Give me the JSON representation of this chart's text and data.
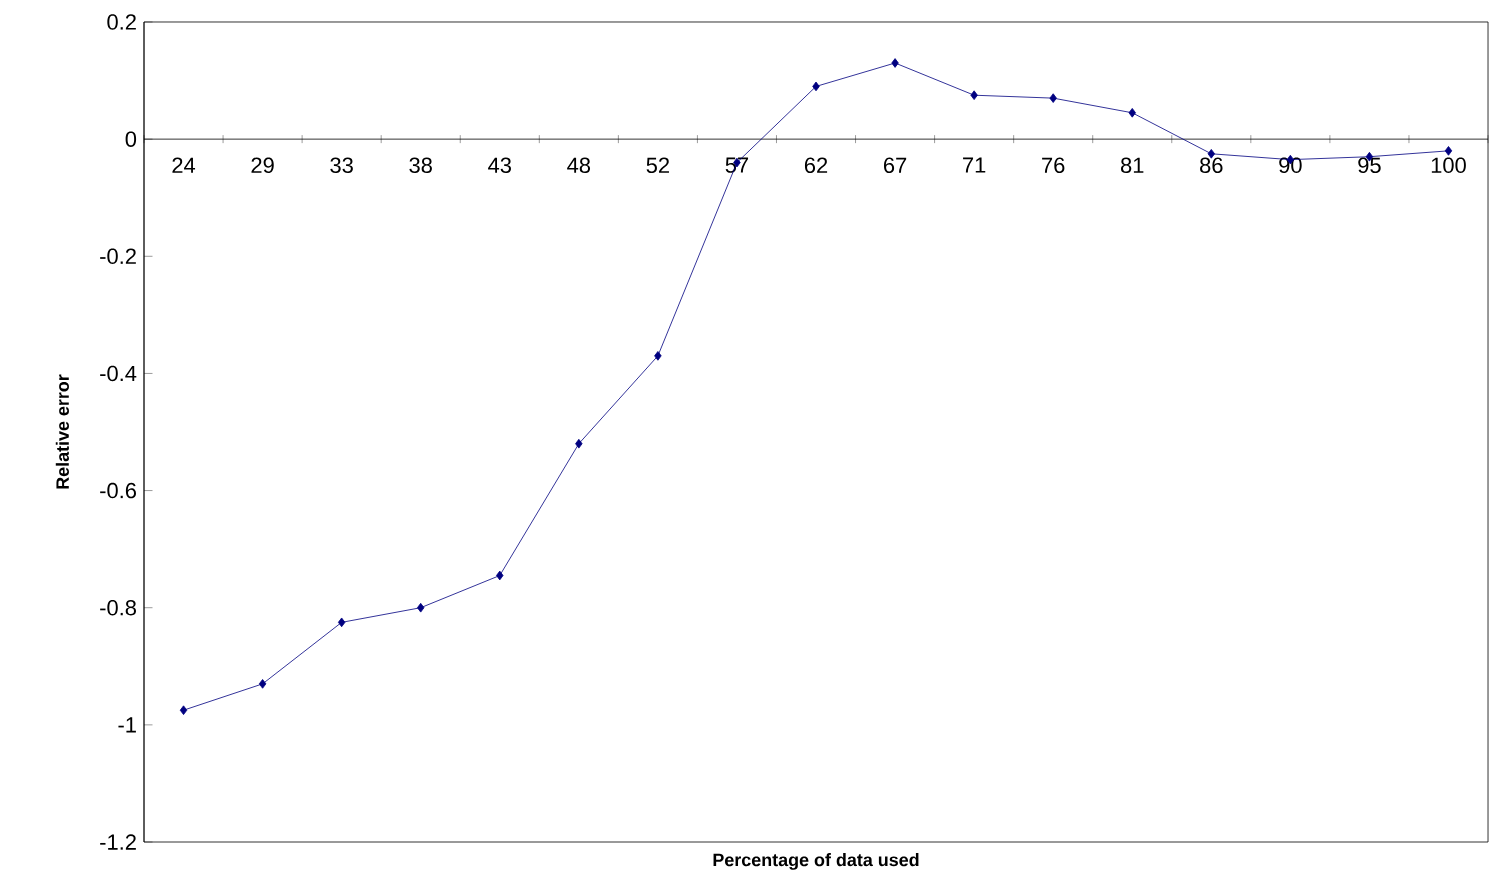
{
  "chart_data": {
    "type": "line",
    "xlabel": "Percentage of data used",
    "ylabel": "Relative error",
    "categories": [
      "24",
      "29",
      "33",
      "38",
      "43",
      "48",
      "52",
      "57",
      "62",
      "67",
      "71",
      "76",
      "81",
      "86",
      "90",
      "95",
      "100"
    ],
    "series": [
      {
        "color": "#000080",
        "values": [
          -0.975,
          -0.93,
          -0.825,
          -0.8,
          -0.745,
          -0.52,
          -0.37,
          -0.04,
          0.09,
          0.13,
          0.075,
          0.07,
          0.045,
          -0.025,
          -0.035,
          -0.03,
          -0.02
        ]
      }
    ],
    "ylim": [
      -1.2,
      0.2
    ],
    "yticks": [
      -1.2,
      -1,
      -0.8,
      -0.6,
      -0.4,
      -0.2,
      0,
      0.2
    ],
    "marker": "diamond",
    "line_style": "solid",
    "grid": false,
    "legend": false
  }
}
